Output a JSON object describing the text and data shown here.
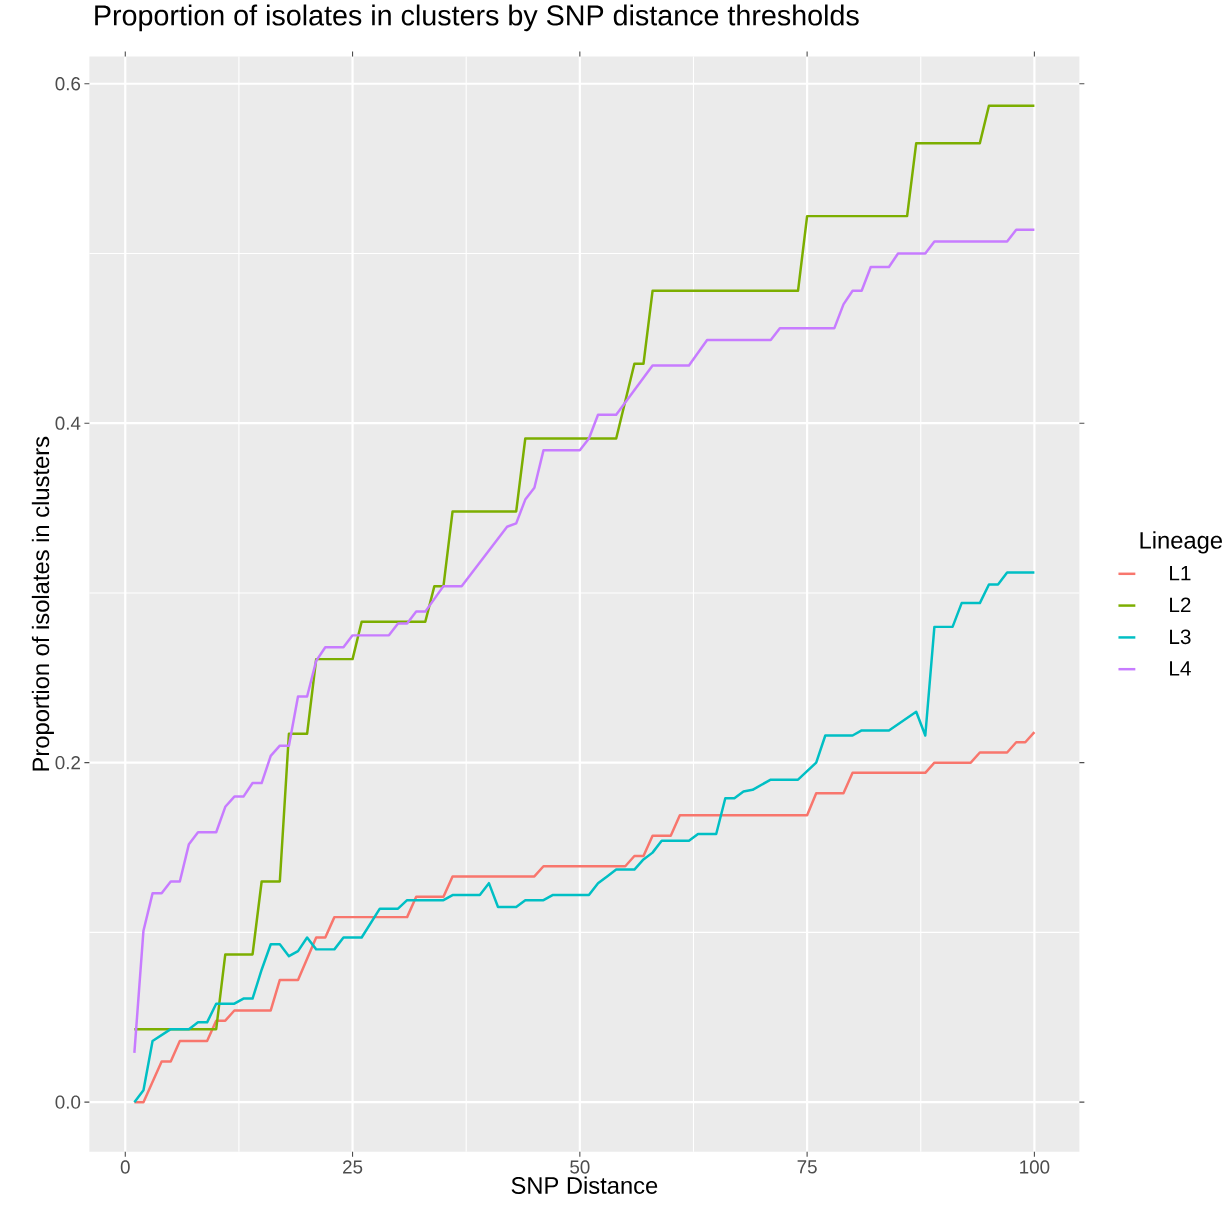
{
  "chart_data": {
    "type": "line",
    "title": "Proportion of isolates in clusters by SNP distance thresholds",
    "xlabel": "SNP Distance",
    "ylabel": "Proportion of isolates in clusters",
    "legend_title": "Lineage",
    "legend": "right",
    "grid": true,
    "line_style": "solid",
    "marker": "none",
    "xlim": [
      -3.95,
      104.95
    ],
    "ylim": [
      -0.0293,
      0.616
    ],
    "xticks": [
      0,
      25,
      50,
      75,
      100
    ],
    "yticks": [
      {
        "value": 0,
        "label": "0.0"
      },
      {
        "value": 0.2,
        "label": "0.2"
      },
      {
        "value": 0.4,
        "label": "0.4"
      },
      {
        "value": 0.6,
        "label": "0.6"
      }
    ],
    "series": [
      {
        "name": "L1",
        "color": "#f8766d",
        "x": [
          1,
          2,
          4,
          5,
          6,
          9,
          10,
          11,
          12,
          16,
          17,
          19,
          21,
          22,
          23,
          31,
          32,
          35,
          36,
          45,
          46,
          55,
          56,
          57,
          58,
          60,
          61,
          75,
          76,
          79,
          80,
          88,
          89,
          93,
          94,
          97,
          98,
          99,
          100
        ],
        "values": [
          0,
          0,
          0.024,
          0.024,
          0.036,
          0.036,
          0.048,
          0.048,
          0.054,
          0.054,
          0.072,
          0.072,
          0.097,
          0.097,
          0.109,
          0.109,
          0.121,
          0.121,
          0.133,
          0.133,
          0.139,
          0.139,
          0.145,
          0.145,
          0.157,
          0.157,
          0.169,
          0.169,
          0.182,
          0.182,
          0.194,
          0.194,
          0.2,
          0.2,
          0.206,
          0.206,
          0.212,
          0.212,
          0.218
        ]
      },
      {
        "name": "L2",
        "color": "#7cae00",
        "x": [
          1,
          10,
          11,
          14,
          15,
          17,
          18,
          20,
          21,
          25,
          26,
          33,
          34,
          35,
          36,
          43,
          44,
          54,
          56,
          57,
          58,
          74,
          75,
          86,
          87,
          94,
          95,
          100
        ],
        "values": [
          0.043,
          0.043,
          0.087,
          0.087,
          0.13,
          0.13,
          0.217,
          0.217,
          0.261,
          0.261,
          0.283,
          0.283,
          0.304,
          0.304,
          0.348,
          0.348,
          0.391,
          0.391,
          0.435,
          0.435,
          0.478,
          0.478,
          0.522,
          0.522,
          0.565,
          0.565,
          0.587,
          0.587
        ]
      },
      {
        "name": "L3",
        "color": "#00bfc4",
        "x": [
          1,
          2,
          3,
          5,
          7,
          8,
          9,
          10,
          12,
          13,
          14,
          15,
          16,
          17,
          18,
          19,
          20,
          21,
          23,
          24,
          26,
          28,
          30,
          31,
          35,
          36,
          39,
          40,
          41,
          43,
          44,
          46,
          47,
          51,
          52,
          53,
          54,
          56,
          57,
          58,
          59,
          62,
          63,
          65,
          66,
          67,
          68,
          69,
          71,
          74,
          75,
          76,
          77,
          80,
          81,
          84,
          87,
          88,
          89,
          91,
          92,
          94,
          95,
          96,
          97,
          100
        ],
        "values": [
          0,
          0.007,
          0.036,
          0.043,
          0.043,
          0.047,
          0.047,
          0.058,
          0.058,
          0.061,
          0.061,
          0.078,
          0.093,
          0.093,
          0.086,
          0.089,
          0.097,
          0.09,
          0.09,
          0.097,
          0.097,
          0.114,
          0.114,
          0.119,
          0.119,
          0.122,
          0.122,
          0.129,
          0.115,
          0.115,
          0.119,
          0.119,
          0.122,
          0.122,
          0.129,
          0.133,
          0.137,
          0.137,
          0.143,
          0.147,
          0.154,
          0.154,
          0.158,
          0.158,
          0.179,
          0.179,
          0.183,
          0.184,
          0.19,
          0.19,
          0.195,
          0.2,
          0.216,
          0.216,
          0.219,
          0.219,
          0.23,
          0.216,
          0.28,
          0.28,
          0.294,
          0.294,
          0.305,
          0.305,
          0.312,
          0.312
        ]
      },
      {
        "name": "L4",
        "color": "#c77cff",
        "x": [
          1,
          2,
          3,
          4,
          5,
          6,
          7,
          8,
          10,
          11,
          12,
          13,
          14,
          15,
          16,
          17,
          18,
          19,
          20,
          21,
          22,
          24,
          25,
          29,
          30,
          31,
          32,
          33,
          35,
          37,
          42,
          43,
          44,
          45,
          46,
          50,
          51,
          52,
          54,
          58,
          62,
          64,
          71,
          72,
          78,
          79,
          80,
          81,
          82,
          84,
          85,
          88,
          89,
          97,
          98,
          100
        ],
        "values": [
          0.029,
          0.101,
          0.123,
          0.123,
          0.13,
          0.13,
          0.152,
          0.159,
          0.159,
          0.174,
          0.18,
          0.18,
          0.188,
          0.188,
          0.204,
          0.21,
          0.21,
          0.239,
          0.239,
          0.26,
          0.268,
          0.268,
          0.275,
          0.275,
          0.282,
          0.282,
          0.289,
          0.289,
          0.304,
          0.304,
          0.339,
          0.341,
          0.355,
          0.362,
          0.384,
          0.384,
          0.391,
          0.405,
          0.405,
          0.434,
          0.434,
          0.449,
          0.449,
          0.456,
          0.456,
          0.47,
          0.478,
          0.478,
          0.492,
          0.492,
          0.5,
          0.5,
          0.507,
          0.507,
          0.514,
          0.514
        ]
      }
    ]
  }
}
